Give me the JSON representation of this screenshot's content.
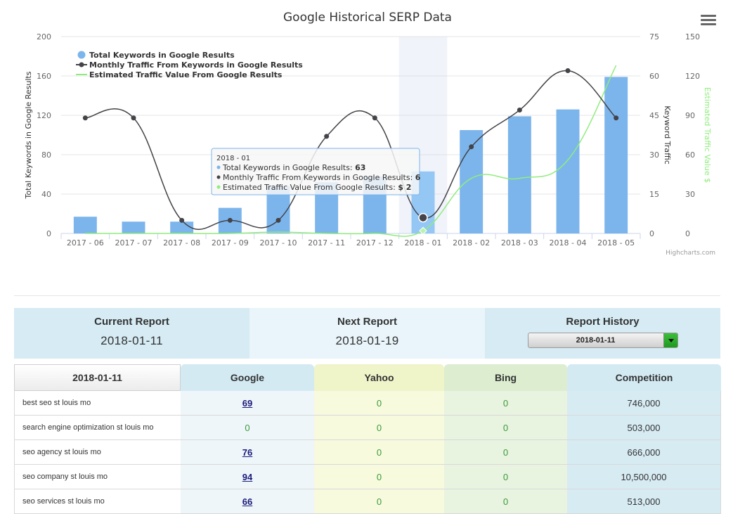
{
  "chart_data": {
    "type": "bar+line",
    "title": "Google Historical SERP Data",
    "categories": [
      "2017 - 06",
      "2017 - 07",
      "2017 - 08",
      "2017 - 09",
      "2017 - 10",
      "2017 - 11",
      "2017 - 12",
      "2018 - 01",
      "2018 - 02",
      "2018 - 03",
      "2018 - 04",
      "2018 - 05"
    ],
    "series": [
      {
        "name": "Total Keywords in Google Results",
        "type": "bar",
        "axis": "left",
        "color": "#7cb5ec",
        "values": [
          17,
          12,
          12,
          26,
          48,
          52,
          58,
          63,
          105,
          119,
          126,
          159
        ]
      },
      {
        "name": "Monthly Traffic From Keywords in Google Results",
        "type": "line",
        "axis": "right1",
        "color": "#434348",
        "values": [
          44,
          44,
          5,
          5,
          5,
          37,
          44,
          6,
          33,
          47,
          62,
          44
        ]
      },
      {
        "name": "Estimated Traffic Value From Google Results",
        "type": "line",
        "axis": "right2",
        "color": "#90ed7d",
        "values": [
          0,
          0,
          0,
          0,
          1,
          0,
          0,
          2,
          42,
          42,
          56,
          128
        ]
      }
    ],
    "yaxes": {
      "left": {
        "label": "Total Keywords in Google Results",
        "range": [
          0,
          200
        ],
        "ticks": [
          "0",
          "40",
          "80",
          "120",
          "160",
          "200"
        ]
      },
      "right1": {
        "label": "Keyword Traffic",
        "range": [
          0,
          75
        ],
        "ticks": [
          "0",
          "15",
          "30",
          "45",
          "60",
          "75"
        ]
      },
      "right2": {
        "label": "Estimated Traffic Value $",
        "range": [
          0,
          150
        ],
        "ticks": [
          "0",
          "30",
          "60",
          "90",
          "120",
          "150"
        ]
      }
    },
    "legend_position": "top-left",
    "grid": true,
    "highlighted_index": 7,
    "tooltip": {
      "header": "2018 - 01",
      "lines": [
        {
          "label": "Total Keywords in Google Results: ",
          "value": "63",
          "color": "#7cb5ec"
        },
        {
          "label": "Monthly Traffic From Keywords in Google Results: ",
          "value": "6",
          "color": "#434348"
        },
        {
          "label": "Estimated Traffic Value From Google Results: ",
          "value": "$ 2",
          "color": "#90ed7d"
        }
      ]
    },
    "credits": "Highcharts.com"
  },
  "report": {
    "current_label": "Current Report",
    "current_date": "2018-01-11",
    "next_label": "Next Report",
    "next_date": "2018-01-19",
    "history_label": "Report History",
    "history_selected": "2018-01-11"
  },
  "table": {
    "headers": {
      "date": "2018-01-11",
      "google": "Google",
      "yahoo": "Yahoo",
      "bing": "Bing",
      "competition": "Competition"
    },
    "rows": [
      {
        "keyword": "best seo st louis mo",
        "google": "69",
        "google_link": true,
        "yahoo": "0",
        "bing": "0",
        "competition": "746,000"
      },
      {
        "keyword": "search engine optimization st louis mo",
        "google": "0",
        "google_link": false,
        "yahoo": "0",
        "bing": "0",
        "competition": "503,000"
      },
      {
        "keyword": "seo agency st louis mo",
        "google": "76",
        "google_link": true,
        "yahoo": "0",
        "bing": "0",
        "competition": "666,000"
      },
      {
        "keyword": "seo company st louis mo",
        "google": "94",
        "google_link": true,
        "yahoo": "0",
        "bing": "0",
        "competition": "10,500,000"
      },
      {
        "keyword": "seo services st louis mo",
        "google": "66",
        "google_link": true,
        "yahoo": "0",
        "bing": "0",
        "competition": "513,000"
      }
    ]
  }
}
